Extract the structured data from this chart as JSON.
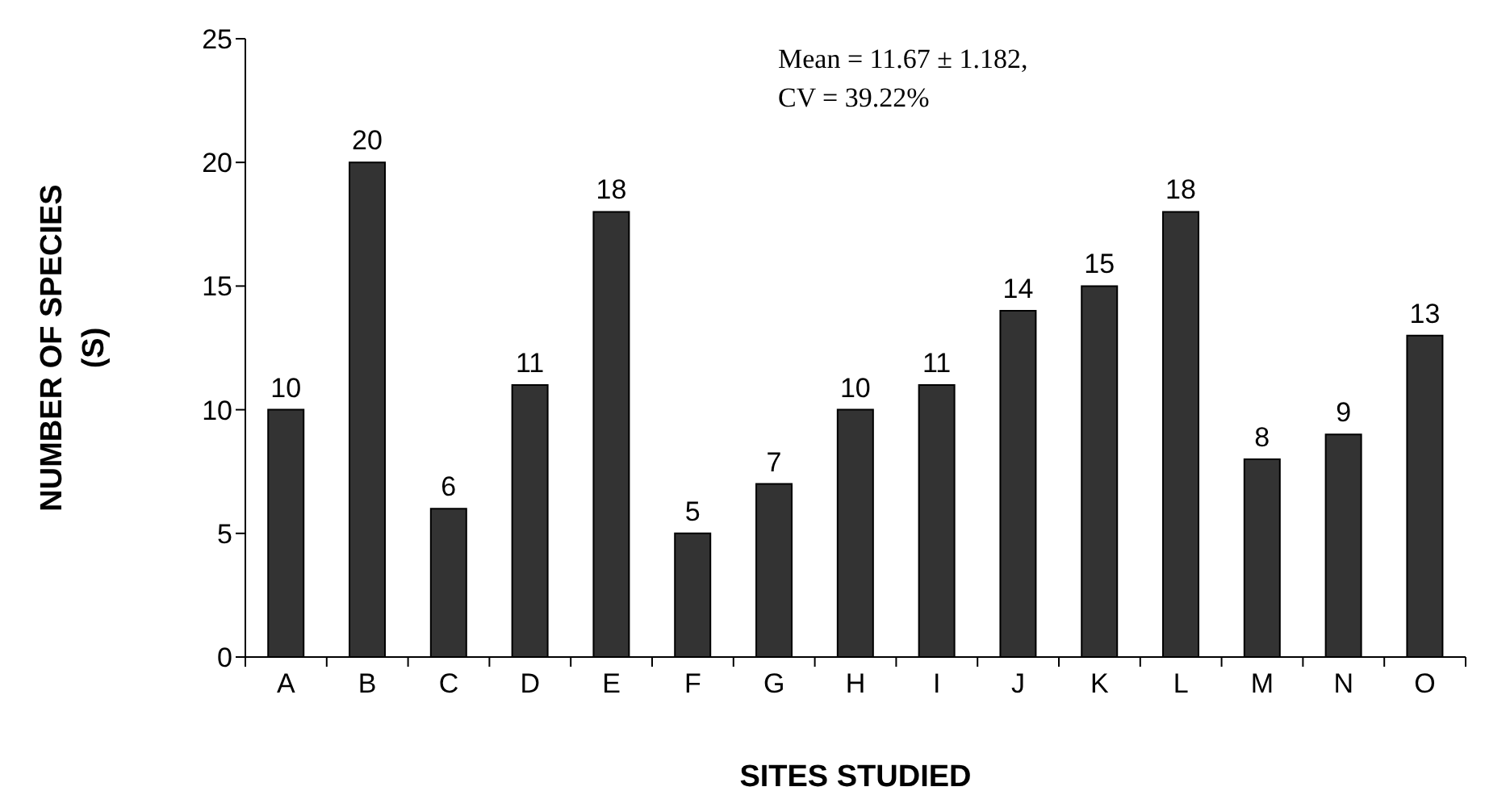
{
  "chart_data": {
    "type": "bar",
    "xlabel": "SITES STUDIED",
    "ylabel": "NUMBER OF SPECIES (S)",
    "categories": [
      "A",
      "B",
      "C",
      "D",
      "E",
      "F",
      "G",
      "H",
      "I",
      "J",
      "K",
      "L",
      "M",
      "N",
      "O"
    ],
    "values": [
      10,
      20,
      6,
      11,
      18,
      5,
      7,
      10,
      11,
      14,
      15,
      18,
      8,
      9,
      13
    ],
    "color": "#333333",
    "ylim": [
      0,
      25
    ],
    "yticks": [
      0,
      5,
      10,
      15,
      20,
      25
    ],
    "data_labels": true,
    "annotations": [
      "Mean = 11.67 ± 1.182,",
      "CV = 39.22%"
    ]
  }
}
